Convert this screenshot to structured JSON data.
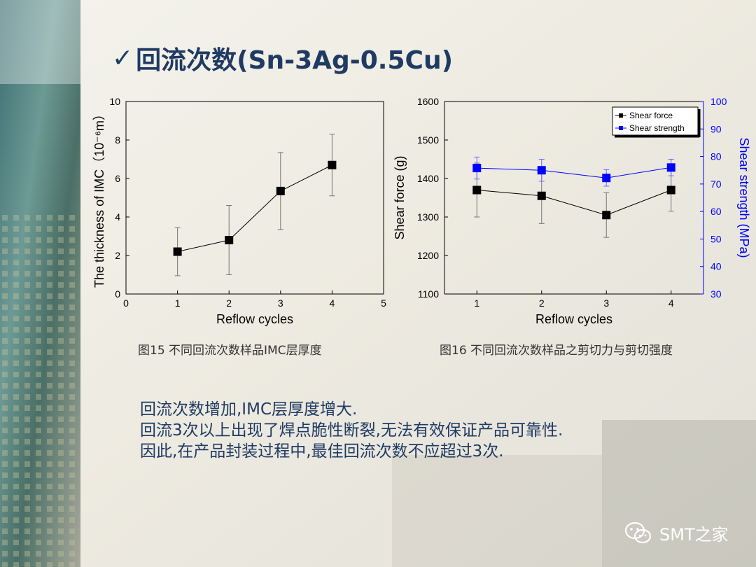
{
  "slide": {
    "title_check": "✓",
    "title": "回流次数(Sn-3Ag-0.5Cu)",
    "captions": [
      "图15 不同回流次数样品IMC层厚度",
      "图16 不同回流次数样品之剪切力与剪切强度"
    ],
    "body_lines": [
      "回流次数增加,IMC层厚度增大.",
      "回流3次以上出现了焊点脆性断裂,无法有效保证产品可靠性.",
      "因此,在产品封装过程中,最佳回流次数不应超过3次."
    ],
    "watermark": "SMT之家",
    "watermark_icon": "wechat-icon",
    "colors": {
      "title": "#1f3a63",
      "blue": "#0000ff",
      "black": "#000000"
    }
  },
  "chart_data": [
    {
      "type": "line",
      "xlabel": "Reflow cycles",
      "ylabel": "The thickness of IMC（10⁻⁶m）",
      "xlim": [
        0,
        5
      ],
      "ylim": [
        0,
        10
      ],
      "x_ticks": [
        0,
        1,
        2,
        3,
        4,
        5
      ],
      "y_ticks": [
        0,
        2,
        4,
        6,
        8,
        10
      ],
      "series": [
        {
          "x": [
            1,
            2,
            3,
            4
          ],
          "y": [
            2.2,
            2.8,
            5.35,
            6.7
          ],
          "err": [
            1.25,
            1.8,
            2.0,
            1.6
          ],
          "color": "#000000"
        }
      ]
    },
    {
      "type": "line",
      "xlabel": "Reflow cycles",
      "ylabel": "Shear force (g)",
      "y2label": "Shear strength (MPa)",
      "xlim": [
        0.5,
        4.5
      ],
      "ylim": [
        1100,
        1600
      ],
      "y2lim": [
        30,
        100
      ],
      "x_ticks": [
        1,
        2,
        3,
        4
      ],
      "y_ticks": [
        1100,
        1200,
        1300,
        1400,
        1500,
        1600
      ],
      "y2_ticks": [
        30,
        40,
        50,
        60,
        70,
        80,
        90,
        100
      ],
      "legend": "top-right",
      "series": [
        {
          "name": "Shear force",
          "axis": "left",
          "x": [
            1,
            2,
            3,
            4
          ],
          "y": [
            1370,
            1355,
            1305,
            1370
          ],
          "err": [
            70,
            72,
            58,
            55
          ],
          "color": "#000000"
        },
        {
          "name": "Shear strength",
          "axis": "right",
          "x": [
            1,
            2,
            3,
            4
          ],
          "y": [
            75.8,
            75.0,
            72.2,
            76.0
          ],
          "err": [
            4,
            4,
            3,
            3
          ],
          "color": "#0000ff"
        }
      ]
    }
  ]
}
